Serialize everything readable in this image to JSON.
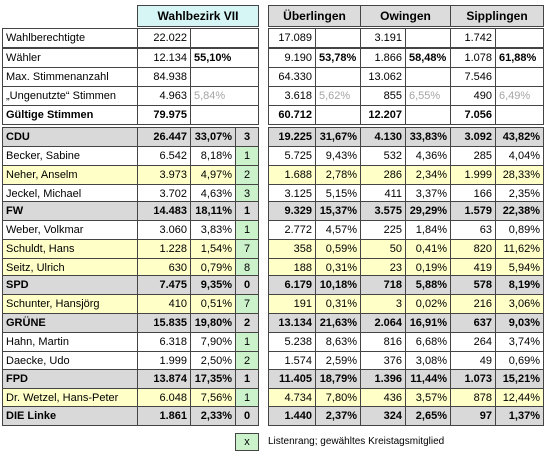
{
  "headers": [
    "Wahlbezirk VII",
    "Überlingen",
    "Owingen",
    "Sipplingen"
  ],
  "stat_rows": [
    {
      "label": "Wahlberechtigte",
      "vii": [
        "22.022",
        ""
      ],
      "ueb": [
        "17.089",
        ""
      ],
      "owi": [
        "3.191",
        ""
      ],
      "sip": [
        "1.742",
        ""
      ],
      "grey": false,
      "bold": false
    },
    {
      "label": "Wähler",
      "vii": [
        "12.134",
        "55,10%"
      ],
      "ueb": [
        "9.190",
        "53,78%"
      ],
      "owi": [
        "1.866",
        "58,48%"
      ],
      "sip": [
        "1.078",
        "61,88%"
      ],
      "grey": false,
      "bold": false
    },
    {
      "label": "Max. Stimmenanzahl",
      "vii": [
        "84.938",
        ""
      ],
      "ueb": [
        "64.330",
        ""
      ],
      "owi": [
        "13.062",
        ""
      ],
      "sip": [
        "7.546",
        ""
      ],
      "grey": false,
      "bold": false
    },
    {
      "label": "„Ungenutzte“ Stimmen",
      "vii": [
        "4.963",
        "5,84%"
      ],
      "ueb": [
        "3.618",
        "5,62%"
      ],
      "owi": [
        "855",
        "6,55%"
      ],
      "sip": [
        "490",
        "6,49%"
      ],
      "grey": true,
      "bold": false
    },
    {
      "label": "Gültige Stimmen",
      "vii": [
        "79.975",
        ""
      ],
      "ueb": [
        "60.712",
        ""
      ],
      "owi": [
        "12.207",
        ""
      ],
      "sip": [
        "7.056",
        ""
      ],
      "grey": false,
      "bold": true
    }
  ],
  "parties": [
    {
      "name": "CDU",
      "vii": [
        "26.447",
        "33,07%",
        "3"
      ],
      "ueb": [
        "19.225",
        "31,67%"
      ],
      "owi": [
        "4.130",
        "33,83%"
      ],
      "sip": [
        "3.092",
        "43,82%"
      ],
      "candidates": [
        {
          "name": "Becker, Sabine",
          "vii": [
            "6.542",
            "8,18%",
            "1"
          ],
          "ueb": [
            "5.725",
            "9,43%"
          ],
          "owi": [
            "532",
            "4,36%"
          ],
          "sip": [
            "285",
            "4,04%"
          ],
          "elected": false
        },
        {
          "name": "Neher, Anselm",
          "vii": [
            "3.973",
            "4,97%",
            "2"
          ],
          "ueb": [
            "1.688",
            "2,78%"
          ],
          "owi": [
            "286",
            "2,34%"
          ],
          "sip": [
            "1.999",
            "28,33%"
          ],
          "elected": true
        },
        {
          "name": "Jeckel, Michael",
          "vii": [
            "3.702",
            "4,63%",
            "3"
          ],
          "ueb": [
            "3.125",
            "5,15%"
          ],
          "owi": [
            "411",
            "3,37%"
          ],
          "sip": [
            "166",
            "2,35%"
          ],
          "elected": false
        }
      ]
    },
    {
      "name": "FW",
      "vii": [
        "14.483",
        "18,11%",
        "1"
      ],
      "ueb": [
        "9.329",
        "15,37%"
      ],
      "owi": [
        "3.575",
        "29,29%"
      ],
      "sip": [
        "1.579",
        "22,38%"
      ],
      "candidates": [
        {
          "name": "Weber, Volkmar",
          "vii": [
            "3.060",
            "3,83%",
            "1"
          ],
          "ueb": [
            "2.772",
            "4,57%"
          ],
          "owi": [
            "225",
            "1,84%"
          ],
          "sip": [
            "63",
            "0,89%"
          ],
          "elected": false
        },
        {
          "name": "Schuldt, Hans",
          "vii": [
            "1.228",
            "1,54%",
            "7"
          ],
          "ueb": [
            "358",
            "0,59%"
          ],
          "owi": [
            "50",
            "0,41%"
          ],
          "sip": [
            "820",
            "11,62%"
          ],
          "elected": true
        },
        {
          "name": "Seitz, Ulrich",
          "vii": [
            "630",
            "0,79%",
            "8"
          ],
          "ueb": [
            "188",
            "0,31%"
          ],
          "owi": [
            "23",
            "0,19%"
          ],
          "sip": [
            "419",
            "5,94%"
          ],
          "elected": true
        }
      ]
    },
    {
      "name": "SPD",
      "vii": [
        "7.475",
        "9,35%",
        "0"
      ],
      "ueb": [
        "6.179",
        "10,18%"
      ],
      "owi": [
        "718",
        "5,88%"
      ],
      "sip": [
        "578",
        "8,19%"
      ],
      "candidates": [
        {
          "name": "Schunter, Hansjörg",
          "vii": [
            "410",
            "0,51%",
            "7"
          ],
          "ueb": [
            "191",
            "0,31%"
          ],
          "owi": [
            "3",
            "0,02%"
          ],
          "sip": [
            "216",
            "3,06%"
          ],
          "elected": true
        }
      ]
    },
    {
      "name": "GRÜNE",
      "vii": [
        "15.835",
        "19,80%",
        "2"
      ],
      "ueb": [
        "13.134",
        "21,63%"
      ],
      "owi": [
        "2.064",
        "16,91%"
      ],
      "sip": [
        "637",
        "9,03%"
      ],
      "candidates": [
        {
          "name": "Hahn, Martin",
          "vii": [
            "6.318",
            "7,90%",
            "1"
          ],
          "ueb": [
            "5.238",
            "8,63%"
          ],
          "owi": [
            "816",
            "6,68%"
          ],
          "sip": [
            "264",
            "3,74%"
          ],
          "elected": false
        },
        {
          "name": "Daecke, Udo",
          "vii": [
            "1.999",
            "2,50%",
            "2"
          ],
          "ueb": [
            "1.574",
            "2,59%"
          ],
          "owi": [
            "376",
            "3,08%"
          ],
          "sip": [
            "49",
            "0,69%"
          ],
          "elected": false
        }
      ]
    },
    {
      "name": "FPD",
      "vii": [
        "13.874",
        "17,35%",
        "1"
      ],
      "ueb": [
        "11.405",
        "18,79%"
      ],
      "owi": [
        "1.396",
        "11,44%"
      ],
      "sip": [
        "1.073",
        "15,21%"
      ],
      "candidates": [
        {
          "name": "Dr. Wetzel, Hans-Peter",
          "vii": [
            "6.048",
            "7,56%",
            "1"
          ],
          "ueb": [
            "4.734",
            "7,80%"
          ],
          "owi": [
            "436",
            "3,57%"
          ],
          "sip": [
            "878",
            "12,44%"
          ],
          "elected": true
        }
      ]
    },
    {
      "name": "DIE Linke",
      "vii": [
        "1.861",
        "2,33%",
        "0"
      ],
      "ueb": [
        "1.440",
        "2,37%"
      ],
      "owi": [
        "324",
        "2,65%"
      ],
      "sip": [
        "97",
        "1,37%"
      ],
      "candidates": []
    }
  ],
  "legend": {
    "symbol": "x",
    "text": "Listenrang; gewähltes Kreistagsmitglied"
  },
  "colors": {
    "header_teal": "#d6f5f5",
    "header_grey": "#dcdcdc",
    "section_grey": "#d9d9d9",
    "highlight_yellow": "#ffffc8",
    "rank_green": "#ccf2cc"
  }
}
